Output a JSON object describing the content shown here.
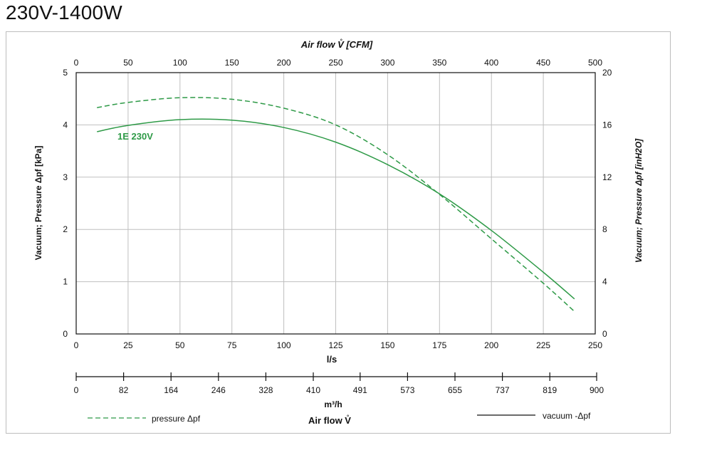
{
  "page": {
    "title": "230V-1400W"
  },
  "colors": {
    "curve": "#2e9a47",
    "grid": "#bfbfbf",
    "axis": "#111111"
  },
  "chart_data": {
    "type": "line",
    "title": "230V-1400W",
    "x_bottom": {
      "label": "l/s",
      "range": [
        0,
        250
      ],
      "ticks": [
        "0",
        "25",
        "50",
        "75",
        "100",
        "125",
        "150",
        "175",
        "200",
        "225",
        "250"
      ]
    },
    "x_top": {
      "label": "Air flow V̊ [CFM]",
      "range": [
        0,
        500
      ],
      "ticks": [
        "0",
        "50",
        "100",
        "150",
        "200",
        "250",
        "300",
        "350",
        "400",
        "450",
        "500"
      ]
    },
    "x_secondary": {
      "label": "m³/h",
      "range": [
        0,
        900
      ],
      "ticks": [
        "0",
        "82",
        "164",
        "246",
        "328",
        "410",
        "491",
        "573",
        "655",
        "737",
        "819",
        "900"
      ]
    },
    "footer_label": "Air flow V̊",
    "y_left": {
      "label": "Vacuum; Pressure  Δpf [kPa]",
      "range": [
        0,
        5
      ],
      "ticks": [
        "0",
        "1",
        "2",
        "3",
        "4",
        "5"
      ]
    },
    "y_right": {
      "label": "Vacuum; Pressure  Δpf [inH2O]",
      "range": [
        0,
        20
      ],
      "ticks": [
        "0",
        "4",
        "8",
        "12",
        "16",
        "20"
      ]
    },
    "curve_label": "1E 230V",
    "series": [
      {
        "name": "pressure Δpf",
        "style": "dashed",
        "x": [
          10,
          25,
          50,
          75,
          100,
          125,
          150,
          175,
          200,
          225,
          240
        ],
        "y": [
          4.33,
          4.43,
          4.52,
          4.49,
          4.32,
          4.0,
          3.43,
          2.67,
          1.82,
          0.97,
          0.43
        ]
      },
      {
        "name": "vacuum -Δpf",
        "style": "solid",
        "x": [
          10,
          25,
          50,
          75,
          100,
          125,
          150,
          175,
          200,
          225,
          240
        ],
        "y": [
          3.87,
          3.99,
          4.1,
          4.09,
          3.95,
          3.67,
          3.24,
          2.68,
          1.98,
          1.18,
          0.67
        ]
      }
    ],
    "legend": {
      "pressure_label": "pressure Δpf",
      "vacuum_label": "vacuum -Δpf"
    }
  }
}
